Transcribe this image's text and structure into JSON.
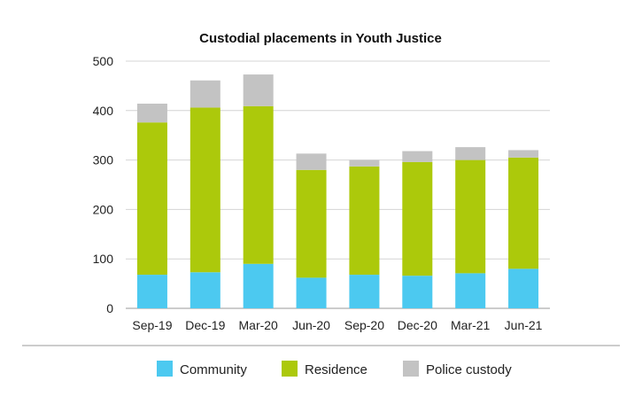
{
  "chart_data": {
    "type": "bar",
    "stacked": true,
    "title": "Custodial placements in Youth Justice",
    "xlabel": "",
    "ylabel": "",
    "ylim": [
      0,
      500
    ],
    "yticks": [
      0,
      100,
      200,
      300,
      400,
      500
    ],
    "grid": true,
    "legend_position": "bottom",
    "categories": [
      "Sep-19",
      "Dec-19",
      "Mar-20",
      "Jun-20",
      "Sep-20",
      "Dec-20",
      "Mar-21",
      "Jun-21"
    ],
    "series": [
      {
        "name": "Community",
        "color": "#4cc9f0",
        "values": [
          68,
          73,
          90,
          62,
          68,
          66,
          71,
          80
        ]
      },
      {
        "name": "Residence",
        "color": "#acc90b",
        "values": [
          308,
          333,
          319,
          218,
          219,
          230,
          229,
          225
        ]
      },
      {
        "name": "Police custody",
        "color": "#c3c3c3",
        "values": [
          38,
          55,
          64,
          33,
          13,
          22,
          26,
          15
        ]
      }
    ]
  }
}
